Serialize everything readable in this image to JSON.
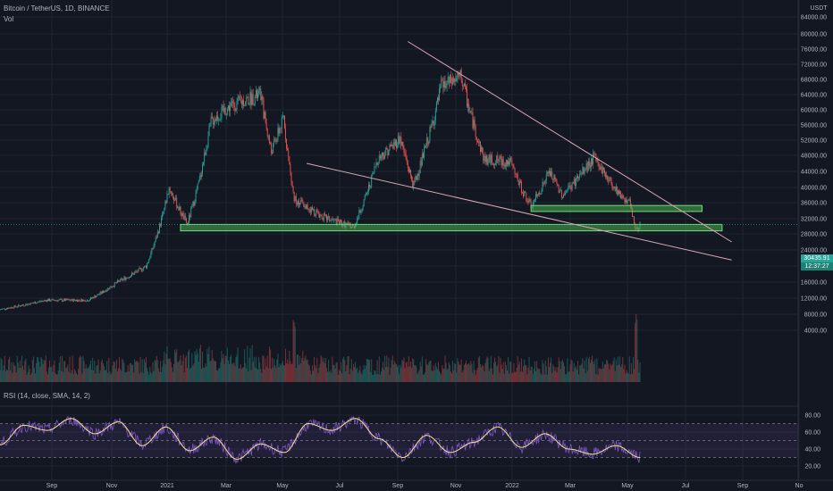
{
  "header": {
    "symbol_line": "Bitcoin / TetherUS, 1D, BINANCE",
    "vol_label": "Vol",
    "rsi_label": "RSI (14, close, SMA, 14, 2)"
  },
  "axis": {
    "currency": "USDT",
    "current_price": "30435.91",
    "countdown": "12:37:27"
  },
  "colors": {
    "background": "#131722",
    "up": "#26a69a",
    "down": "#ef5350",
    "zone": "#4caf50",
    "trendline": "#d8a6b4",
    "rsi_line": "#7e57c2",
    "rsi_ma": "#f0e68c",
    "price_tag": "#26a69a"
  },
  "chart_data": [
    {
      "type": "candlestick",
      "title": "Bitcoin / TetherUS, 1D, BINANCE",
      "x_ticks": [
        "Sep",
        "Nov",
        "2021",
        "Mar",
        "May",
        "Jul",
        "Sep",
        "Nov",
        "2022",
        "Mar",
        "May",
        "Jul",
        "Sep",
        "No"
      ],
      "y_scale": "log",
      "y_ticks": [
        84000,
        80000,
        76000,
        72000,
        68000,
        64000,
        60000,
        56000,
        52000,
        48000,
        44000,
        40000,
        36000,
        32000,
        28000,
        24000,
        20000,
        16000,
        12000,
        8000,
        4000
      ],
      "ylim": [
        4000,
        84000
      ],
      "close_path": [
        {
          "date": "2020-07-15",
          "close": 9200
        },
        {
          "date": "2020-09-01",
          "close": 11500
        },
        {
          "date": "2020-10-15",
          "close": 11500
        },
        {
          "date": "2020-11-15",
          "close": 16000
        },
        {
          "date": "2020-12-15",
          "close": 20000
        },
        {
          "date": "2021-01-08",
          "close": 40000
        },
        {
          "date": "2021-01-27",
          "close": 30500
        },
        {
          "date": "2021-02-21",
          "close": 57000
        },
        {
          "date": "2021-03-13",
          "close": 61000
        },
        {
          "date": "2021-04-14",
          "close": 64000
        },
        {
          "date": "2021-04-25",
          "close": 49000
        },
        {
          "date": "2021-05-08",
          "close": 58000
        },
        {
          "date": "2021-05-19",
          "close": 37000
        },
        {
          "date": "2021-06-22",
          "close": 32000
        },
        {
          "date": "2021-07-20",
          "close": 29800
        },
        {
          "date": "2021-08-14",
          "close": 47000
        },
        {
          "date": "2021-09-07",
          "close": 52500
        },
        {
          "date": "2021-09-21",
          "close": 40500
        },
        {
          "date": "2021-10-20",
          "close": 66000
        },
        {
          "date": "2021-11-10",
          "close": 68700
        },
        {
          "date": "2021-12-04",
          "close": 47000
        },
        {
          "date": "2021-12-31",
          "close": 46300
        },
        {
          "date": "2022-01-22",
          "close": 35000
        },
        {
          "date": "2022-02-10",
          "close": 44000
        },
        {
          "date": "2022-02-24",
          "close": 38000
        },
        {
          "date": "2022-03-29",
          "close": 47500
        },
        {
          "date": "2022-04-26",
          "close": 38000
        },
        {
          "date": "2022-05-05",
          "close": 36000
        },
        {
          "date": "2022-05-12",
          "close": 28800
        },
        {
          "date": "2022-05-16",
          "close": 30435.91
        }
      ],
      "trendlines": [
        {
          "from": {
            "date": "2021-09-15",
            "price": 78000
          },
          "to": {
            "date": "2022-08-20",
            "price": 26000
          }
        },
        {
          "from": {
            "date": "2021-06-01",
            "price": 46000
          },
          "to": {
            "date": "2022-08-20",
            "price": 21500
          }
        }
      ],
      "zones": [
        {
          "from_date": "2021-01-20",
          "to_date": "2022-08-10",
          "low": 28800,
          "high": 30500
        },
        {
          "from_date": "2022-01-22",
          "to_date": "2022-07-20",
          "low": 33800,
          "high": 35300
        }
      ],
      "volume": {
        "label": "Vol",
        "spike_dates": [
          "2021-05-19",
          "2022-05-12"
        ]
      }
    },
    {
      "type": "line",
      "title": "RSI (14, close, SMA, 14, 2)",
      "y_ticks": [
        80,
        60,
        40,
        20
      ],
      "ylim": [
        20,
        80
      ],
      "bands": {
        "upper": 70,
        "middle": 50,
        "lower": 30
      },
      "series": [
        {
          "values": [
            45,
            68,
            62,
            76,
            58,
            72,
            44,
            66,
            38,
            54,
            28,
            46,
            36,
            70,
            62,
            76,
            52,
            30,
            56,
            36,
            48,
            66,
            42,
            58,
            40,
            34,
            44,
            30
          ]
        }
      ]
    }
  ]
}
